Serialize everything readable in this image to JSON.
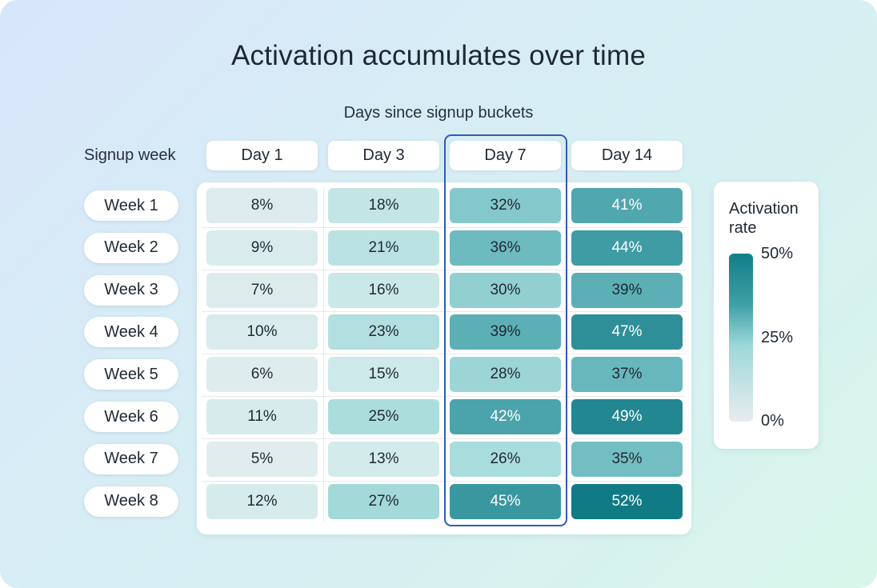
{
  "title": "Activation accumulates over time",
  "subtitle": "Days since signup buckets",
  "row_axis_label": "Signup week",
  "columns": [
    "Day 1",
    "Day 3",
    "Day 7",
    "Day 14"
  ],
  "highlighted_column": "Day 7",
  "rows": [
    "Week 1",
    "Week 2",
    "Week 3",
    "Week 4",
    "Week 5",
    "Week 6",
    "Week 7",
    "Week 8"
  ],
  "cells": [
    [
      "8%",
      "18%",
      "32%",
      "41%"
    ],
    [
      "9%",
      "21%",
      "36%",
      "44%"
    ],
    [
      "7%",
      "16%",
      "30%",
      "39%"
    ],
    [
      "10%",
      "23%",
      "39%",
      "47%"
    ],
    [
      "6%",
      "15%",
      "28%",
      "37%"
    ],
    [
      "11%",
      "25%",
      "42%",
      "49%"
    ],
    [
      "5%",
      "13%",
      "26%",
      "35%"
    ],
    [
      "12%",
      "27%",
      "45%",
      "52%"
    ]
  ],
  "legend": {
    "title_line1": "Activation",
    "title_line2": "rate",
    "ticks": [
      "50%",
      "25%",
      "0%"
    ]
  },
  "colors": {
    "low": "#e8ecee",
    "mid": "#9dd8d8",
    "high": "#137f88",
    "highlight_border": "#2f5bbf"
  },
  "chart_data": {
    "type": "heatmap",
    "title": "Activation accumulates over time",
    "xlabel": "Days since signup buckets",
    "ylabel": "Signup week",
    "x": [
      "Day 1",
      "Day 3",
      "Day 7",
      "Day 14"
    ],
    "y": [
      "Week 1",
      "Week 2",
      "Week 3",
      "Week 4",
      "Week 5",
      "Week 6",
      "Week 7",
      "Week 8"
    ],
    "values": [
      [
        8,
        18,
        32,
        41
      ],
      [
        9,
        21,
        36,
        44
      ],
      [
        7,
        16,
        30,
        39
      ],
      [
        10,
        23,
        39,
        47
      ],
      [
        6,
        15,
        28,
        37
      ],
      [
        11,
        25,
        42,
        49
      ],
      [
        5,
        13,
        26,
        35
      ],
      [
        12,
        27,
        45,
        52
      ]
    ],
    "unit": "%",
    "colorbar": {
      "label": "Activation rate",
      "range": [
        0,
        50
      ],
      "ticks": [
        "0%",
        "25%",
        "50%"
      ]
    },
    "highlight": {
      "column": "Day 7"
    },
    "legend_position": "right"
  }
}
